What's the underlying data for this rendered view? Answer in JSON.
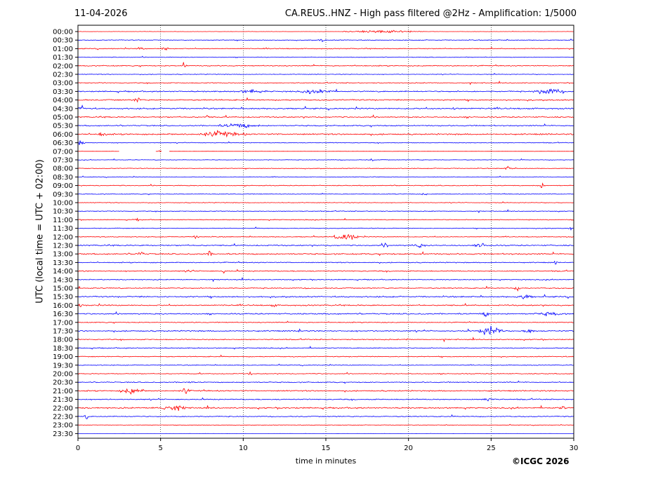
{
  "header": {
    "date": "11-04-2026",
    "title": "CA.REUS..HNZ - High pass filtered @2Hz - Amplification: 1/5000"
  },
  "footer": {
    "copyright": "©ICGC 2026"
  },
  "chart_data": {
    "type": "line",
    "title": "CA.REUS..HNZ - High pass filtered @2Hz - Amplification: 1/5000",
    "xlabel": "time in minutes",
    "ylabel": "UTC (local time = UTC + 02:00)",
    "xlim": [
      0,
      30
    ],
    "x_ticks": [
      "0",
      "5",
      "10",
      "15",
      "20",
      "25",
      "30"
    ],
    "grid": "vertical dotted lines at each 5 minutes",
    "series_colors": [
      "#ff0000",
      "#0000ff"
    ],
    "rows": [
      "00:00",
      "00:30",
      "01:00",
      "01:30",
      "02:00",
      "02:30",
      "03:00",
      "03:30",
      "04:00",
      "04:30",
      "05:00",
      "05:30",
      "06:00",
      "06:30",
      "07:00",
      "07:30",
      "08:00",
      "08:30",
      "09:00",
      "09:30",
      "10:00",
      "10:30",
      "11:00",
      "11:30",
      "12:00",
      "12:30",
      "13:00",
      "13:30",
      "14:00",
      "14:30",
      "15:00",
      "15:30",
      "16:00",
      "16:30",
      "17:00",
      "17:30",
      "18:00",
      "18:30",
      "19:00",
      "19:30",
      "20:00",
      "20:30",
      "21:00",
      "21:30",
      "22:00",
      "22:30",
      "23:00",
      "23:30"
    ],
    "noise_level": [
      0.15,
      0.4,
      0.5,
      0.35,
      0.55,
      0.35,
      0.45,
      0.7,
      0.7,
      0.75,
      0.7,
      0.65,
      0.8,
      0.4,
      0.1,
      0.35,
      0.4,
      0.35,
      0.45,
      0.35,
      0.35,
      0.4,
      0.45,
      0.4,
      0.45,
      0.7,
      0.75,
      0.55,
      0.6,
      0.5,
      0.6,
      0.75,
      0.7,
      0.7,
      0.5,
      0.7,
      0.55,
      0.55,
      0.5,
      0.4,
      0.45,
      0.55,
      0.7,
      0.6,
      0.75,
      0.55,
      0.25,
      0.1
    ],
    "events": [
      {
        "row": "00:00",
        "start": 16.0,
        "end": 21.0,
        "amp": 3
      },
      {
        "row": "00:30",
        "start": 14.5,
        "end": 15.0,
        "amp": 4
      },
      {
        "row": "01:00",
        "start": 5.0,
        "end": 5.5,
        "amp": 6
      },
      {
        "row": "01:00",
        "start": 3.6,
        "end": 4.0,
        "amp": 5
      },
      {
        "row": "02:00",
        "start": 6.2,
        "end": 6.6,
        "amp": 8
      },
      {
        "row": "03:30",
        "start": 9.5,
        "end": 11.5,
        "amp": 5
      },
      {
        "row": "03:30",
        "start": 13.5,
        "end": 15.5,
        "amp": 7
      },
      {
        "row": "03:30",
        "start": 27.5,
        "end": 29.5,
        "amp": 8
      },
      {
        "row": "04:00",
        "start": 3.4,
        "end": 3.9,
        "amp": 9
      },
      {
        "row": "04:30",
        "start": 0.0,
        "end": 0.5,
        "amp": 6
      },
      {
        "row": "04:30",
        "start": 22.5,
        "end": 23.0,
        "amp": 5
      },
      {
        "row": "05:00",
        "start": 7.7,
        "end": 8.0,
        "amp": 6
      },
      {
        "row": "05:30",
        "start": 8.5,
        "end": 11.0,
        "amp": 6
      },
      {
        "row": "06:00",
        "start": 7.0,
        "end": 10.2,
        "amp": 7
      },
      {
        "row": "06:00",
        "start": 1.0,
        "end": 2.0,
        "amp": 5
      },
      {
        "row": "06:30",
        "start": 0.0,
        "end": 0.4,
        "amp": 9
      },
      {
        "row": "07:00",
        "start": 4.7,
        "end": 5.1,
        "amp": 2
      },
      {
        "row": "07:30",
        "start": 17.7,
        "end": 17.9,
        "amp": 5
      },
      {
        "row": "08:00",
        "start": 25.8,
        "end": 26.3,
        "amp": 5
      },
      {
        "row": "09:00",
        "start": 27.8,
        "end": 28.3,
        "amp": 6
      },
      {
        "row": "09:30",
        "start": 20.8,
        "end": 21.1,
        "amp": 5
      },
      {
        "row": "11:00",
        "start": 3.3,
        "end": 3.8,
        "amp": 4
      },
      {
        "row": "11:30",
        "start": 28.2,
        "end": 28.4,
        "amp": 7
      },
      {
        "row": "11:30",
        "start": 29.7,
        "end": 29.9,
        "amp": 6
      },
      {
        "row": "12:00",
        "start": 15.5,
        "end": 17.0,
        "amp": 9
      },
      {
        "row": "12:00",
        "start": 7.0,
        "end": 7.3,
        "amp": 6
      },
      {
        "row": "12:30",
        "start": 24.0,
        "end": 24.8,
        "amp": 7
      },
      {
        "row": "12:30",
        "start": 18.5,
        "end": 18.8,
        "amp": 7
      },
      {
        "row": "12:30",
        "start": 20.2,
        "end": 21.0,
        "amp": 6
      },
      {
        "row": "13:00",
        "start": 3.5,
        "end": 4.0,
        "amp": 7
      },
      {
        "row": "13:00",
        "start": 7.7,
        "end": 8.2,
        "amp": 6
      },
      {
        "row": "13:00",
        "start": 20.6,
        "end": 21.0,
        "amp": 6
      },
      {
        "row": "13:30",
        "start": 28.8,
        "end": 29.0,
        "amp": 6
      },
      {
        "row": "14:00",
        "start": 8.7,
        "end": 9.0,
        "amp": 6
      },
      {
        "row": "14:00",
        "start": 6.6,
        "end": 7.0,
        "amp": 6
      },
      {
        "row": "15:00",
        "start": 26.4,
        "end": 26.8,
        "amp": 6
      },
      {
        "row": "15:30",
        "start": 26.5,
        "end": 27.5,
        "amp": 7
      },
      {
        "row": "16:00",
        "start": 0.0,
        "end": 0.3,
        "amp": 7
      },
      {
        "row": "16:00",
        "start": 11.7,
        "end": 12.0,
        "amp": 6
      },
      {
        "row": "16:30",
        "start": 24.3,
        "end": 25.0,
        "amp": 6
      },
      {
        "row": "16:30",
        "start": 27.5,
        "end": 29.5,
        "amp": 5
      },
      {
        "row": "17:30",
        "start": 24.2,
        "end": 25.8,
        "amp": 12
      },
      {
        "row": "17:30",
        "start": 13.2,
        "end": 13.5,
        "amp": 6
      },
      {
        "row": "17:30",
        "start": 27.0,
        "end": 27.8,
        "amp": 6
      },
      {
        "row": "18:00",
        "start": 19.8,
        "end": 20.0,
        "amp": 6
      },
      {
        "row": "20:00",
        "start": 10.3,
        "end": 10.5,
        "amp": 7
      },
      {
        "row": "20:30",
        "start": 6.5,
        "end": 6.9,
        "amp": 6
      },
      {
        "row": "21:00",
        "start": 2.5,
        "end": 4.0,
        "amp": 8
      },
      {
        "row": "21:00",
        "start": 6.2,
        "end": 6.8,
        "amp": 8
      },
      {
        "row": "21:30",
        "start": 24.5,
        "end": 25.3,
        "amp": 6
      },
      {
        "row": "22:00",
        "start": 4.5,
        "end": 6.8,
        "amp": 7
      },
      {
        "row": "22:00",
        "start": 29.0,
        "end": 29.6,
        "amp": 5
      },
      {
        "row": "22:30",
        "start": 0.3,
        "end": 0.7,
        "amp": 6
      }
    ],
    "gaps": [
      {
        "row": "07:00",
        "start": 2.5,
        "end": 4.7
      },
      {
        "row": "07:00",
        "start": 5.1,
        "end": 5.5
      }
    ]
  }
}
